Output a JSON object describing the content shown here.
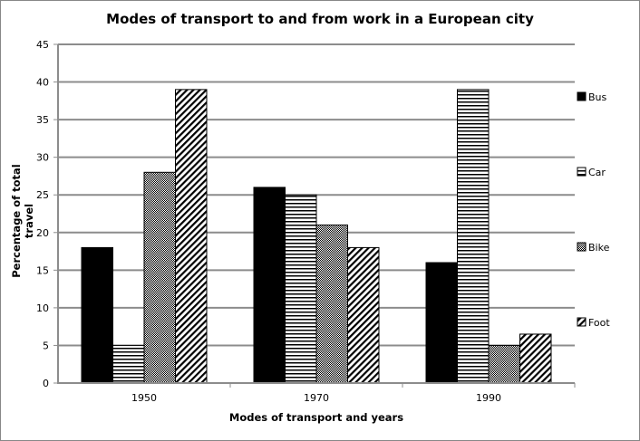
{
  "chart_data": {
    "type": "bar",
    "title": "Modes of transport to and from work in a European city",
    "xlabel": "Modes of transport and years",
    "ylabel": "Percentage of total travel",
    "categories": [
      "1950",
      "1970",
      "1990"
    ],
    "series": [
      {
        "name": "Bus",
        "pattern": "solid",
        "values": [
          18,
          26,
          16
        ]
      },
      {
        "name": "Car",
        "pattern": "horizontal-lines",
        "values": [
          5,
          25,
          39
        ]
      },
      {
        "name": "Bike",
        "pattern": "checker",
        "values": [
          28,
          21,
          5
        ]
      },
      {
        "name": "Foot",
        "pattern": "diagonal-lines",
        "values": [
          39,
          18,
          6.5
        ]
      }
    ],
    "ylim": [
      0,
      45
    ],
    "yticks": [
      0,
      5,
      10,
      15,
      20,
      25,
      30,
      35,
      40,
      45
    ],
    "grid": true,
    "legend_position": "right"
  },
  "colors": {
    "bar": "#000000",
    "grid": "#8c8c8c",
    "background": "#ffffff"
  }
}
